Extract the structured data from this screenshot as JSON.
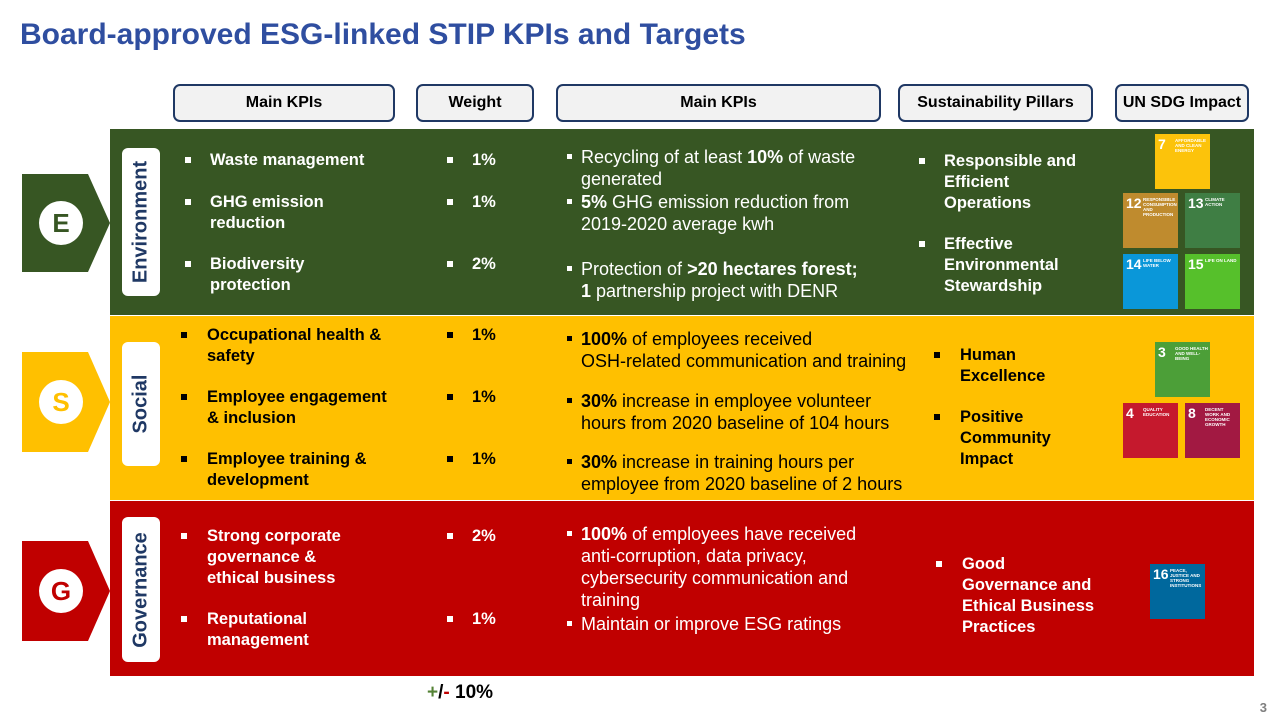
{
  "title": "Board-approved ESG-linked STIP KPIs and Targets",
  "headers": [
    "Main KPIs",
    "Weight",
    "Main KPIs",
    "Sustainability Pillars",
    "UN SDG Impact"
  ],
  "sections": [
    {
      "letter": "E",
      "name": "Environment",
      "color": "#375623",
      "text_color": "#ffffff",
      "kpis": [
        {
          "lines": [
            "Waste management"
          ],
          "weight": "1%"
        },
        {
          "lines": [
            "GHG emission",
            "reduction"
          ],
          "weight": "1%"
        },
        {
          "lines": [
            "Biodiversity",
            "protection"
          ],
          "weight": "2%"
        }
      ],
      "targets": [
        {
          "lines": [
            [
              {
                "t": "Recycling of at least "
              },
              {
                "t": "10%",
                "b": true
              },
              {
                "t": " of waste"
              }
            ],
            [
              {
                "t": "generated"
              }
            ]
          ]
        },
        {
          "lines": [
            [
              {
                "t": "5%",
                "b": true
              },
              {
                "t": " GHG emission reduction from"
              }
            ],
            [
              {
                "t": "2019-2020 average kwh"
              }
            ]
          ]
        },
        {
          "lines": [
            [
              {
                "t": "Protection of "
              },
              {
                "t": ">20 hectares forest;",
                "b": true
              }
            ],
            [
              {
                "t": "1",
                "b": true
              },
              {
                "t": " partnership project with DENR"
              }
            ]
          ]
        }
      ],
      "pillars": [
        {
          "lines": [
            "Responsible and",
            "Efficient",
            "Operations"
          ]
        },
        {
          "lines": [
            "Effective",
            "Environmental",
            "Stewardship"
          ]
        }
      ],
      "sdgs": [
        {
          "number": "7",
          "label": "AFFORDABLE AND CLEAN ENERGY",
          "color": "#fcc30b"
        },
        {
          "number": "12",
          "label": "RESPONSIBLE CONSUMPTION AND PRODUCTION",
          "color": "#bf8b2e"
        },
        {
          "number": "13",
          "label": "CLIMATE ACTION",
          "color": "#3f7e44"
        },
        {
          "number": "14",
          "label": "LIFE BELOW WATER",
          "color": "#0a97d9"
        },
        {
          "number": "15",
          "label": "LIFE ON LAND",
          "color": "#56c02b"
        }
      ]
    },
    {
      "letter": "S",
      "name": "Social",
      "color": "#ffc000",
      "text_color": "#000000",
      "kpis": [
        {
          "lines": [
            "Occupational health &",
            "safety"
          ],
          "weight": "1%"
        },
        {
          "lines": [
            "Employee engagement",
            "& inclusion"
          ],
          "weight": "1%"
        },
        {
          "lines": [
            "Employee training &",
            "development"
          ],
          "weight": "1%"
        }
      ],
      "targets": [
        {
          "lines": [
            [
              {
                "t": "100%",
                "b": true
              },
              {
                "t": " of employees received"
              }
            ],
            [
              {
                "t": "OSH-related communication and training"
              }
            ]
          ]
        },
        {
          "lines": [
            [
              {
                "t": "30%",
                "b": true
              },
              {
                "t": " increase in employee volunteer"
              }
            ],
            [
              {
                "t": "hours from 2020 baseline of 104 hours"
              }
            ]
          ]
        },
        {
          "lines": [
            [
              {
                "t": "30%",
                "b": true
              },
              {
                "t": " increase in training hours per"
              }
            ],
            [
              {
                "t": "employee from 2020 baseline of 2 hours"
              }
            ]
          ]
        }
      ],
      "pillars": [
        {
          "lines": [
            "Human",
            "Excellence"
          ]
        },
        {
          "lines": [
            "Positive",
            "Community",
            "Impact"
          ]
        }
      ],
      "sdgs": [
        {
          "number": "3",
          "label": "GOOD HEALTH AND WELL-BEING",
          "color": "#4c9f38"
        },
        {
          "number": "4",
          "label": "QUALITY EDUCATION",
          "color": "#c5192d"
        },
        {
          "number": "8",
          "label": "DECENT WORK AND ECONOMIC GROWTH",
          "color": "#a21942"
        }
      ]
    },
    {
      "letter": "G",
      "name": "Governance",
      "color": "#c00000",
      "text_color": "#ffffff",
      "kpis": [
        {
          "lines": [
            "Strong corporate",
            "governance &",
            "ethical business"
          ],
          "weight": "2%"
        },
        {
          "lines": [
            "Reputational",
            "management"
          ],
          "weight": "1%"
        }
      ],
      "targets": [
        {
          "lines": [
            [
              {
                "t": "100%",
                "b": true
              },
              {
                "t": " of employees have received"
              }
            ],
            [
              {
                "t": "anti-corruption, data privacy,"
              }
            ],
            [
              {
                "t": "cybersecurity communication and"
              }
            ],
            [
              {
                "t": "training"
              }
            ]
          ]
        },
        {
          "lines": [
            [
              {
                "t": "Maintain or improve ESG ratings"
              }
            ]
          ]
        }
      ],
      "pillars": [
        {
          "lines": [
            "Good",
            "Governance and",
            "Ethical Business",
            "Practices"
          ]
        }
      ],
      "sdgs": [
        {
          "number": "16",
          "label": "PEACE, JUSTICE AND STRONG INSTITUTIONS",
          "color": "#00689d"
        }
      ]
    }
  ],
  "total_weight": [
    {
      "t": "+",
      "color": "#548235"
    },
    {
      "t": "/",
      "color": "#000000"
    },
    {
      "t": "-",
      "color": "#c00000"
    },
    {
      "t": " 10%",
      "color": "#000000"
    }
  ],
  "page_number": "3"
}
